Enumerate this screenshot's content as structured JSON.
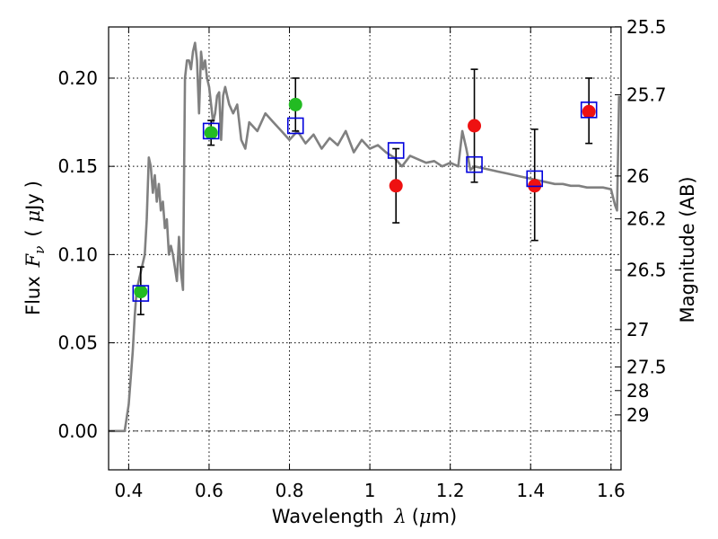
{
  "chart_data": {
    "type": "line",
    "xlabel_parts": [
      "Wavelength",
      "λ",
      "(",
      "μ",
      "m)"
    ],
    "ylabel_parts": [
      "Flux",
      "F",
      "ν",
      "(",
      "μ",
      "Jy",
      ")"
    ],
    "y2label": "Magnitude (AB)",
    "xlim": [
      0.35,
      1.625
    ],
    "ylim": [
      -0.022,
      0.229
    ],
    "xticks": [
      {
        "v": 0.4,
        "label": "0.4"
      },
      {
        "v": 0.6,
        "label": "0.6"
      },
      {
        "v": 0.8,
        "label": "0.8"
      },
      {
        "v": 1.0,
        "label": "1"
      },
      {
        "v": 1.2,
        "label": "1.2"
      },
      {
        "v": 1.4,
        "label": "1.4"
      },
      {
        "v": 1.6,
        "label": "1.6"
      }
    ],
    "yticks": [
      {
        "v": 0.0,
        "label": "0.00"
      },
      {
        "v": 0.05,
        "label": "0.05"
      },
      {
        "v": 0.1,
        "label": "0.10"
      },
      {
        "v": 0.15,
        "label": "0.15"
      },
      {
        "v": 0.2,
        "label": "0.20"
      }
    ],
    "mag_ticks": [
      {
        "mag": 25.5,
        "label": "25.5"
      },
      {
        "mag": 25.7,
        "label": "25.7"
      },
      {
        "mag": 26,
        "label": "26"
      },
      {
        "mag": 26.2,
        "label": "26.2"
      },
      {
        "mag": 26.5,
        "label": "26.5"
      },
      {
        "mag": 27,
        "label": "27"
      },
      {
        "mag": 27.5,
        "label": "27.5"
      },
      {
        "mag": 28,
        "label": "28"
      },
      {
        "mag": 29,
        "label": "29"
      }
    ],
    "grid": true,
    "model_spectrum": {
      "color": "#808080",
      "x": [
        0.35,
        0.39,
        0.4,
        0.41,
        0.415,
        0.42,
        0.43,
        0.44,
        0.445,
        0.45,
        0.455,
        0.46,
        0.465,
        0.47,
        0.475,
        0.48,
        0.485,
        0.49,
        0.495,
        0.5,
        0.505,
        0.51,
        0.52,
        0.525,
        0.53,
        0.535,
        0.54,
        0.545,
        0.55,
        0.555,
        0.56,
        0.565,
        0.57,
        0.575,
        0.58,
        0.585,
        0.59,
        0.595,
        0.6,
        0.605,
        0.61,
        0.615,
        0.62,
        0.625,
        0.63,
        0.635,
        0.64,
        0.645,
        0.65,
        0.66,
        0.67,
        0.68,
        0.69,
        0.7,
        0.72,
        0.74,
        0.76,
        0.78,
        0.8,
        0.82,
        0.84,
        0.86,
        0.88,
        0.9,
        0.92,
        0.94,
        0.96,
        0.98,
        1.0,
        1.02,
        1.04,
        1.06,
        1.08,
        1.1,
        1.12,
        1.14,
        1.16,
        1.18,
        1.2,
        1.22,
        1.23,
        1.24,
        1.25,
        1.26,
        1.28,
        1.3,
        1.32,
        1.34,
        1.36,
        1.38,
        1.4,
        1.42,
        1.44,
        1.46,
        1.48,
        1.5,
        1.52,
        1.54,
        1.56,
        1.58,
        1.6,
        1.61,
        1.615,
        1.62
      ],
      "y": [
        0.0,
        0.0,
        0.015,
        0.045,
        0.065,
        0.08,
        0.09,
        0.1,
        0.12,
        0.155,
        0.15,
        0.135,
        0.145,
        0.13,
        0.14,
        0.125,
        0.13,
        0.115,
        0.12,
        0.1,
        0.105,
        0.1,
        0.085,
        0.11,
        0.09,
        0.08,
        0.2,
        0.21,
        0.21,
        0.205,
        0.215,
        0.22,
        0.21,
        0.18,
        0.215,
        0.205,
        0.21,
        0.2,
        0.195,
        0.185,
        0.175,
        0.18,
        0.19,
        0.192,
        0.165,
        0.19,
        0.195,
        0.19,
        0.185,
        0.18,
        0.185,
        0.165,
        0.16,
        0.175,
        0.17,
        0.18,
        0.175,
        0.17,
        0.165,
        0.17,
        0.163,
        0.168,
        0.16,
        0.166,
        0.162,
        0.17,
        0.158,
        0.165,
        0.16,
        0.162,
        0.158,
        0.155,
        0.15,
        0.156,
        0.154,
        0.152,
        0.153,
        0.15,
        0.152,
        0.15,
        0.17,
        0.16,
        0.148,
        0.15,
        0.149,
        0.148,
        0.147,
        0.146,
        0.145,
        0.144,
        0.143,
        0.142,
        0.141,
        0.14,
        0.14,
        0.139,
        0.139,
        0.138,
        0.138,
        0.138,
        0.137,
        0.128,
        0.125,
        0.19
      ]
    },
    "series": [
      {
        "marker": "circle",
        "color": "#22bb22",
        "points": [
          [
            0.43,
            0.079
          ],
          [
            0.605,
            0.169
          ],
          [
            0.815,
            0.185
          ]
        ]
      },
      {
        "marker": "circle",
        "color": "#ee1111",
        "points": [
          [
            1.065,
            0.139
          ],
          [
            1.26,
            0.173
          ],
          [
            1.41,
            0.139
          ],
          [
            1.545,
            0.181
          ]
        ]
      },
      {
        "marker": "open-square",
        "color": "#0000dd",
        "points": [
          [
            0.43,
            0.078
          ],
          [
            0.605,
            0.17
          ],
          [
            0.815,
            0.173
          ],
          [
            1.065,
            0.159
          ],
          [
            1.26,
            0.151
          ],
          [
            1.41,
            0.143
          ],
          [
            1.545,
            0.182
          ]
        ]
      }
    ],
    "errorbars": [
      {
        "x": 0.43,
        "y": 0.079,
        "lo": 0.066,
        "hi": 0.093
      },
      {
        "x": 0.605,
        "y": 0.169,
        "lo": 0.162,
        "hi": 0.176
      },
      {
        "x": 0.815,
        "y": 0.185,
        "lo": 0.17,
        "hi": 0.2
      },
      {
        "x": 1.065,
        "y": 0.139,
        "lo": 0.118,
        "hi": 0.16
      },
      {
        "x": 1.26,
        "y": 0.173,
        "lo": 0.141,
        "hi": 0.205
      },
      {
        "x": 1.41,
        "y": 0.139,
        "lo": 0.108,
        "hi": 0.171
      },
      {
        "x": 1.545,
        "y": 0.181,
        "lo": 0.163,
        "hi": 0.2
      }
    ]
  }
}
